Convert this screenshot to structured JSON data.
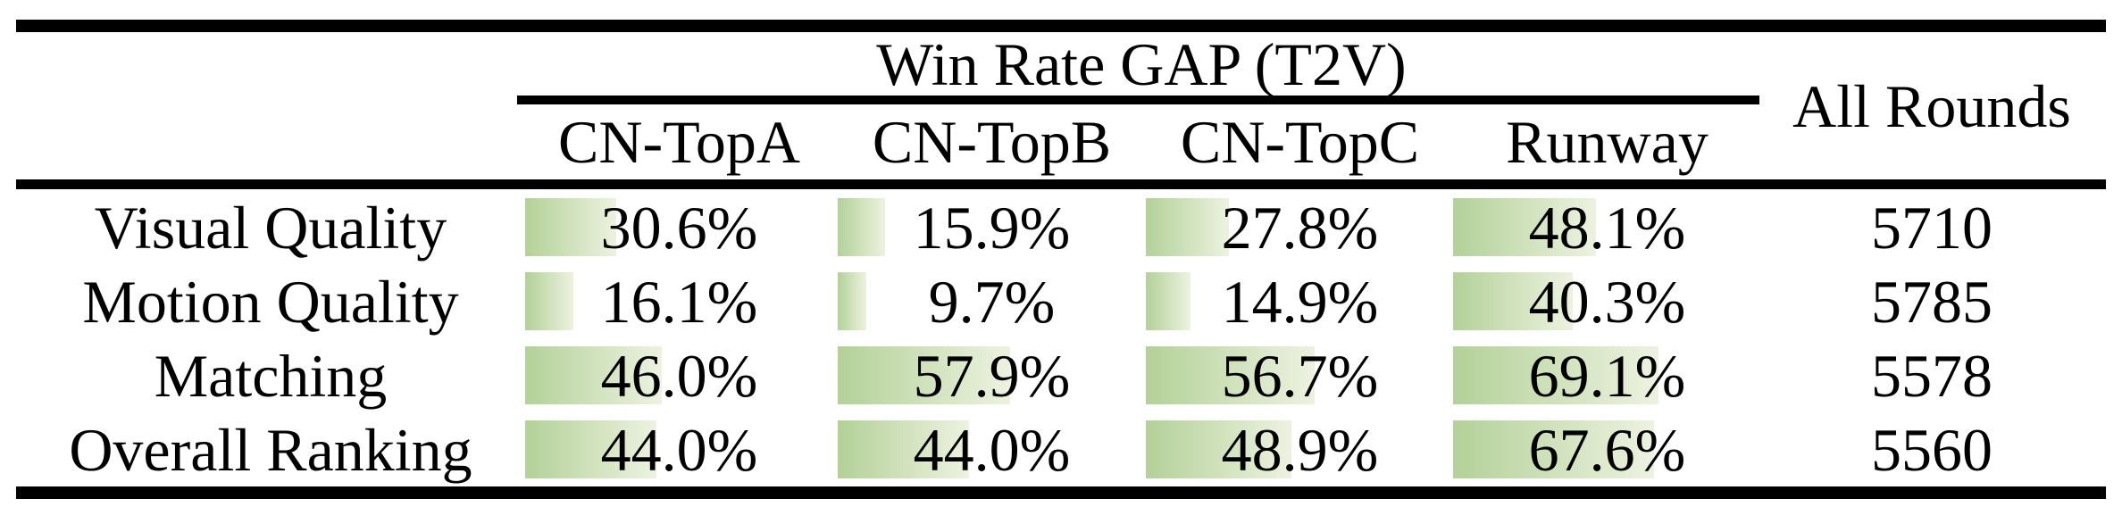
{
  "table": {
    "group_header": "Win Rate GAP (T2V)",
    "all_rounds_header": "All Rounds",
    "columns": [
      "CN-TopA",
      "CN-TopB",
      "CN-TopC",
      "Runway"
    ],
    "rows": [
      {
        "label": "Visual Quality",
        "cells": [
          {
            "pct": 30.6,
            "text": "30.6%"
          },
          {
            "pct": 15.9,
            "text": "15.9%"
          },
          {
            "pct": 27.8,
            "text": "27.8%"
          },
          {
            "pct": 48.1,
            "text": "48.1%"
          }
        ],
        "all_rounds": "5710"
      },
      {
        "label": "Motion Quality",
        "cells": [
          {
            "pct": 16.1,
            "text": "16.1%"
          },
          {
            "pct": 9.7,
            "text": "9.7%"
          },
          {
            "pct": 14.9,
            "text": "14.9%"
          },
          {
            "pct": 40.3,
            "text": "40.3%"
          }
        ],
        "all_rounds": "5785"
      },
      {
        "label": "Matching",
        "cells": [
          {
            "pct": 46.0,
            "text": "46.0%"
          },
          {
            "pct": 57.9,
            "text": "57.9%"
          },
          {
            "pct": 56.7,
            "text": "56.7%"
          },
          {
            "pct": 69.1,
            "text": "69.1%"
          }
        ],
        "all_rounds": "5578"
      },
      {
        "label": "Overall Ranking",
        "cells": [
          {
            "pct": 44.0,
            "text": "44.0%"
          },
          {
            "pct": 44.0,
            "text": "44.0%"
          },
          {
            "pct": 48.9,
            "text": "48.9%"
          },
          {
            "pct": 67.6,
            "text": "67.6%"
          }
        ],
        "all_rounds": "5560"
      }
    ]
  },
  "colors": {
    "bar_gradient_start": "#b3d198",
    "bar_gradient_end": "#edf2e0",
    "rule": "#000000",
    "background": "#ffffff"
  },
  "chart_data": {
    "type": "table",
    "title": "Win Rate GAP (T2V)",
    "categories": [
      "Visual Quality",
      "Motion Quality",
      "Matching",
      "Overall Ranking"
    ],
    "series": [
      {
        "name": "CN-TopA",
        "values": [
          30.6,
          16.1,
          46.0,
          44.0
        ]
      },
      {
        "name": "CN-TopB",
        "values": [
          15.9,
          9.7,
          57.9,
          44.0
        ]
      },
      {
        "name": "CN-TopC",
        "values": [
          27.8,
          14.9,
          56.7,
          48.9
        ]
      },
      {
        "name": "Runway",
        "values": [
          48.1,
          40.3,
          69.1,
          67.6
        ]
      }
    ],
    "extra_column": {
      "name": "All Rounds",
      "values": [
        5710,
        5785,
        5578,
        5560
      ]
    },
    "units": "%",
    "layout_hints": "win-rate percentages shown over proportional green left-anchored data bars; thick black top/bottom rules, mid rule under headers, partial rule under group header"
  }
}
